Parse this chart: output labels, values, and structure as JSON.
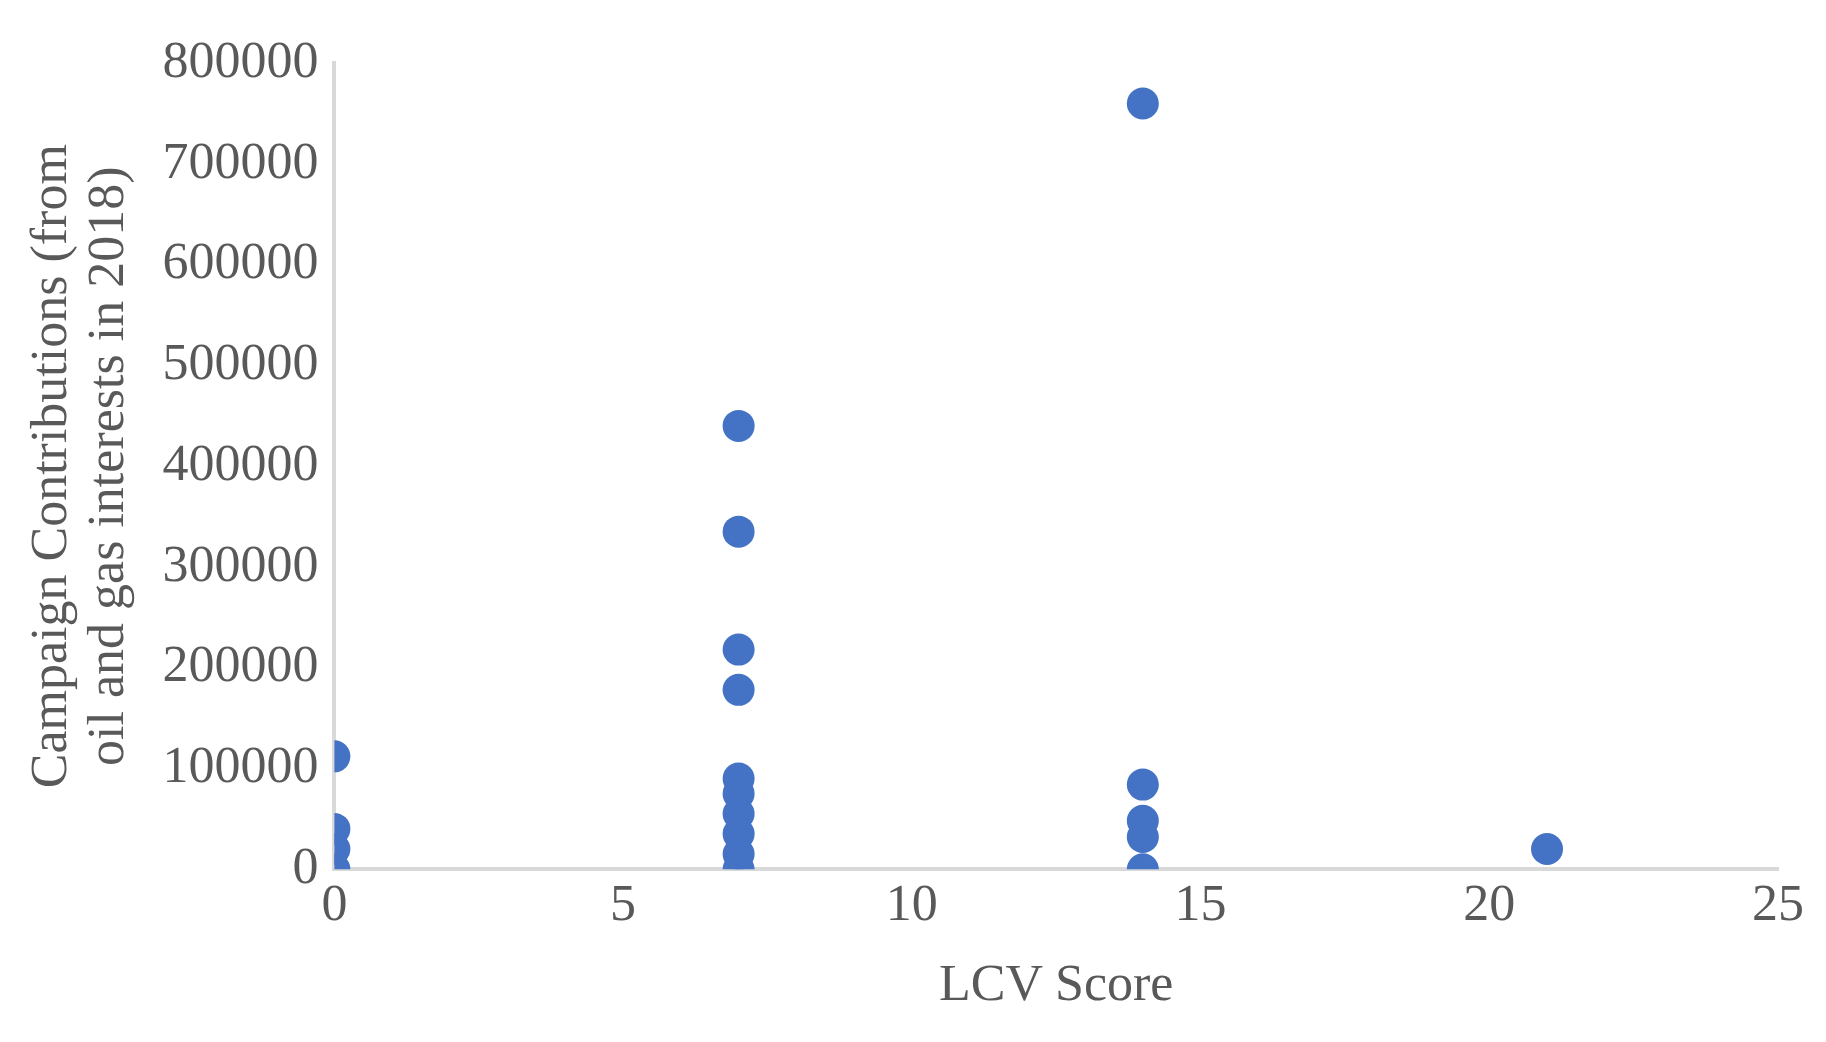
{
  "chart_data": {
    "type": "scatter",
    "xlabel": "LCV Score",
    "ylabel": "Campaign Contributions (from oil and gas interests in 2018)",
    "xlim": [
      0,
      25
    ],
    "xticks": [
      0,
      5,
      10,
      15,
      20,
      25
    ],
    "ylim": [
      0,
      800000
    ],
    "yticks": [
      0,
      100000,
      200000,
      300000,
      400000,
      500000,
      600000,
      700000,
      800000
    ],
    "grid": false,
    "legend": false,
    "marker": "circle",
    "series": [
      {
        "color": "#4472c4",
        "x": [
          0,
          0,
          0,
          0,
          7,
          7,
          7,
          7,
          7,
          7,
          7,
          7,
          7,
          7,
          14,
          14,
          14,
          14,
          14,
          21
        ],
        "values": [
          112000,
          40000,
          20000,
          0,
          440000,
          335000,
          218000,
          178000,
          90000,
          75000,
          55000,
          35000,
          15000,
          0,
          760000,
          84000,
          48000,
          32000,
          0,
          20000
        ]
      }
    ]
  }
}
